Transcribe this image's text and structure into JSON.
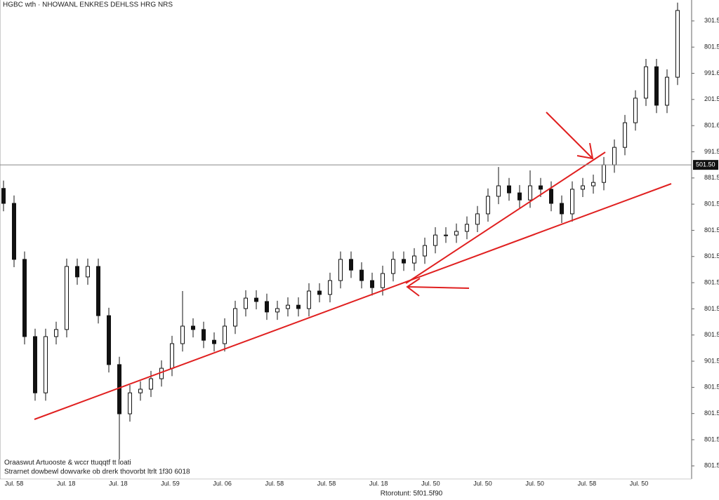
{
  "chart_data": {
    "type": "candlestick",
    "title": "HGBC wth · NHOWANL ENKRES DEHLSS HRG NRS",
    "footnote_lines": [
      "Oraaswut Artuooste & wccr ttuqqtf tt loati",
      "Strarnet dowbewl dowvarke ob drerk thovorbt ltrlt 1f30 6018"
    ],
    "x_axis_title": "Rtorotunt: 5f01.5f90",
    "x_labels": [
      "Jul. 58",
      "Jul. 18",
      "Jul. 18",
      "Jul. 59",
      "Jul. 06",
      "Jul. 58",
      "Jul. 58",
      "Jul. 18",
      "Jul. 50",
      "Jul. 50",
      "Jul. 50",
      "Jul. 58",
      "Jul. 50"
    ],
    "open": [
      11.6,
      11.03,
      8.89,
      5.94,
      3.79,
      5.94,
      6.21,
      8.62,
      8.22,
      8.62,
      6.74,
      4.87,
      2.99,
      3.79,
      3.93,
      4.33,
      4.73,
      5.67,
      6.34,
      6.21,
      5.8,
      5.67,
      6.34,
      7.01,
      7.41,
      7.28,
      6.88,
      7.01,
      7.14,
      7.01,
      7.68,
      7.55,
      8.08,
      8.89,
      8.48,
      8.08,
      7.81,
      8.35,
      8.89,
      8.75,
      9.02,
      9.42,
      9.82,
      9.82,
      9.96,
      10.23,
      10.63,
      11.3,
      11.7,
      11.43,
      11.16,
      11.7,
      11.57,
      11.03,
      10.63,
      11.57,
      11.7,
      11.83,
      12.5,
      13.17,
      14.11,
      15.05,
      16.25,
      14.78,
      15.85
    ],
    "high": [
      11.9,
      11.33,
      9.19,
      6.24,
      6.24,
      6.51,
      8.92,
      8.92,
      8.92,
      8.92,
      7.04,
      5.17,
      4.09,
      4.23,
      4.63,
      5.03,
      5.97,
      7.68,
      6.64,
      6.51,
      6.1,
      6.64,
      7.31,
      7.71,
      7.71,
      7.58,
      7.31,
      7.44,
      7.44,
      7.98,
      7.98,
      8.38,
      9.19,
      9.19,
      8.78,
      8.38,
      8.65,
      9.19,
      9.19,
      9.32,
      9.72,
      10.12,
      10.12,
      10.26,
      10.53,
      10.93,
      11.6,
      12.42,
      12.0,
      11.73,
      12.29,
      12.0,
      11.87,
      11.33,
      11.87,
      12.0,
      12.13,
      12.8,
      13.47,
      14.41,
      15.35,
      16.55,
      16.55,
      16.15,
      18.7
    ],
    "low": [
      10.73,
      8.59,
      5.64,
      3.49,
      3.49,
      5.64,
      5.91,
      7.92,
      7.92,
      6.44,
      4.57,
      1.25,
      2.69,
      3.49,
      3.63,
      4.03,
      4.43,
      5.37,
      5.91,
      5.5,
      5.37,
      5.37,
      6.04,
      6.71,
      6.98,
      6.58,
      6.58,
      6.71,
      6.71,
      6.71,
      7.25,
      7.25,
      7.78,
      8.18,
      7.78,
      7.51,
      7.51,
      8.05,
      8.45,
      8.45,
      8.72,
      9.12,
      9.52,
      9.52,
      9.66,
      9.93,
      10.33,
      11.0,
      11.13,
      10.86,
      10.86,
      11.27,
      10.73,
      10.28,
      10.33,
      11.27,
      11.4,
      11.53,
      12.2,
      12.87,
      13.81,
      14.75,
      14.48,
      14.48,
      15.55
    ],
    "close": [
      11.03,
      8.89,
      5.94,
      3.79,
      5.94,
      6.21,
      8.62,
      8.22,
      8.62,
      6.74,
      4.87,
      2.99,
      3.79,
      3.93,
      4.33,
      4.73,
      5.67,
      6.34,
      6.21,
      5.8,
      5.67,
      6.34,
      7.01,
      7.41,
      7.28,
      6.88,
      7.01,
      7.14,
      7.01,
      7.68,
      7.55,
      8.08,
      8.89,
      8.48,
      8.08,
      7.81,
      8.35,
      8.89,
      8.75,
      9.02,
      9.42,
      9.82,
      9.82,
      9.96,
      10.23,
      10.63,
      11.3,
      11.7,
      11.43,
      11.16,
      11.7,
      11.57,
      11.03,
      10.63,
      11.57,
      11.7,
      11.83,
      12.5,
      13.17,
      14.11,
      15.05,
      16.25,
      14.78,
      15.85,
      18.4
    ],
    "up_color": "#ffffff",
    "down_color": "#111111",
    "ylim": [
      0.5,
      18.8
    ],
    "yticks": [
      {
        "value": 18,
        "label": "301.50"
      },
      {
        "value": 17,
        "label": "801.50"
      },
      {
        "value": 16,
        "label": "991.60"
      },
      {
        "value": 15,
        "label": "201.50"
      },
      {
        "value": 14,
        "label": "801.60"
      },
      {
        "value": 13,
        "label": "991.50"
      },
      {
        "value": 12,
        "label": "881.50"
      },
      {
        "value": 11,
        "label": "801.50"
      },
      {
        "value": 10,
        "label": "801.50"
      },
      {
        "value": 9,
        "label": "801.50"
      },
      {
        "value": 8,
        "label": "801.50"
      },
      {
        "value": 7,
        "label": "801.50"
      },
      {
        "value": 6,
        "label": "801.50"
      },
      {
        "value": 5,
        "label": "901.50"
      },
      {
        "value": 4,
        "label": "801.50"
      },
      {
        "value": 3,
        "label": "801.50"
      },
      {
        "value": 2,
        "label": "801.50"
      },
      {
        "value": 1,
        "label": "801.50"
      }
    ],
    "price_line": {
      "value": 12.5,
      "label": "501.50"
    }
  }
}
